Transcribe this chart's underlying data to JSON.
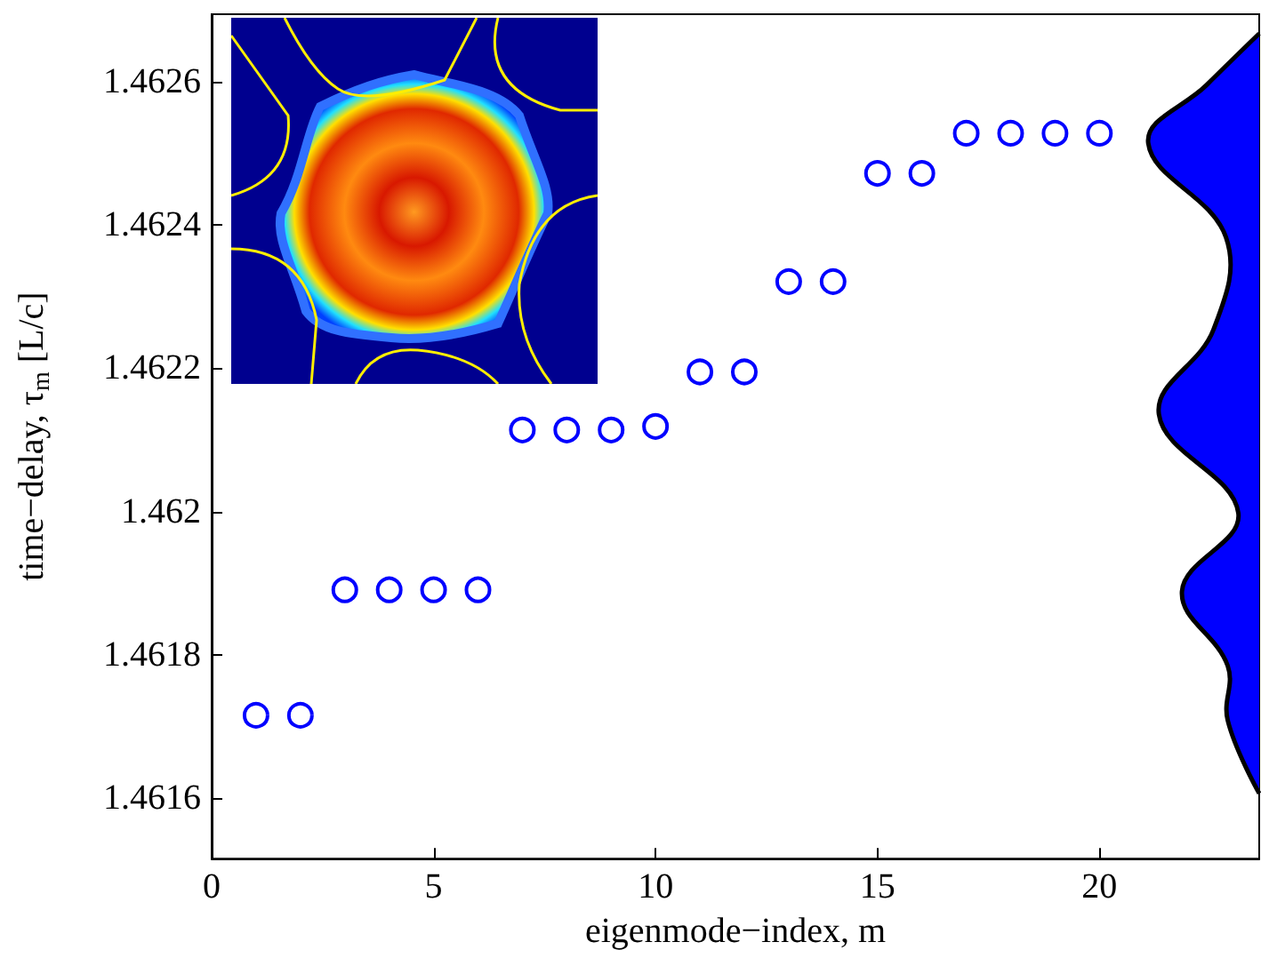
{
  "chart_data": {
    "type": "scatter",
    "xlabel": "eigenmode−index, m",
    "ylabel": "time−delay, τ$_{m}$ [L/c]",
    "xlim": [
      0,
      23.6
    ],
    "xticks": [
      0,
      5,
      10,
      15,
      20
    ],
    "ylim": [
      1.461516,
      1.462694
    ],
    "yticks": [
      1.4616,
      1.4618,
      1.462,
      1.4622,
      1.4624,
      1.4626
    ],
    "grid": false,
    "series": [
      {
        "marker": "circle",
        "color": "#0000ff",
        "x": [
          1,
          2,
          3,
          4,
          5,
          6,
          7,
          8,
          9,
          10,
          11,
          12,
          13,
          14,
          15,
          16,
          17,
          18,
          19,
          20
        ],
        "values": [
          1.461716,
          1.461716,
          1.461891,
          1.461891,
          1.461891,
          1.461891,
          1.462114,
          1.462114,
          1.462114,
          1.462119,
          1.462195,
          1.462195,
          1.462321,
          1.462321,
          1.462472,
          1.462472,
          1.462528,
          1.462528,
          1.462528,
          1.462528
        ]
      },
      {
        "type": "area",
        "color": "#0000ff",
        "x": [
          23.6,
          22.41,
          21.1,
          22.85,
          22.57,
          21.34,
          23.13,
          21.86,
          22.89,
          22.89,
          23.6
        ],
        "values": [
          1.462667,
          1.462595,
          1.462514,
          1.462383,
          1.462254,
          1.462136,
          1.461998,
          1.461889,
          1.461785,
          1.461709,
          1.461607
        ]
      }
    ]
  }
}
